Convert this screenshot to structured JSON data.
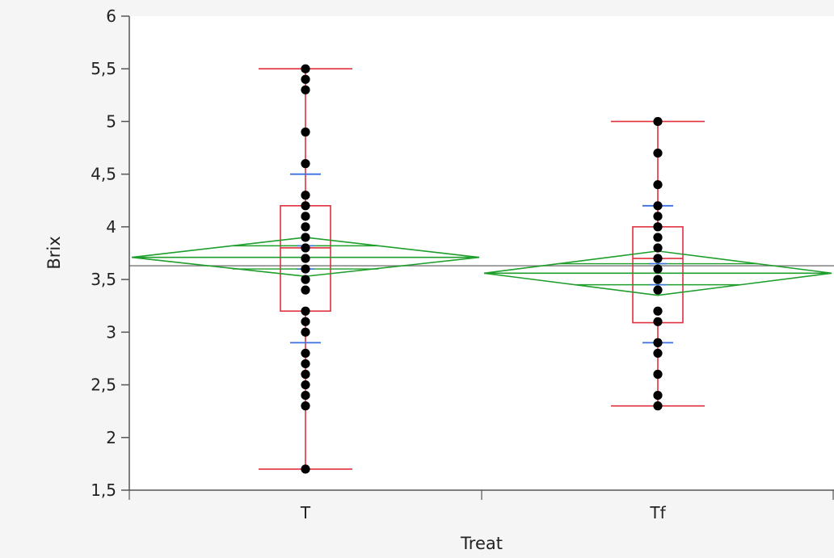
{
  "chart_data": {
    "type": "scatter",
    "subtype": "oneway-anova-box-plot-with-means-diamonds",
    "xlabel": "Treat",
    "ylabel": "Brix",
    "categories": [
      "T",
      "Tf"
    ],
    "ylim": [
      1.5,
      6
    ],
    "yticks": [
      1.5,
      2,
      2.5,
      3,
      3.5,
      4,
      4.5,
      5,
      5.5,
      6
    ],
    "ytick_labels": [
      "1,5",
      "2",
      "2,5",
      "3",
      "3,5",
      "4",
      "4,5",
      "5",
      "5,5",
      "6"
    ],
    "grid": false,
    "grand_mean": 3.63,
    "groups": [
      {
        "name": "T",
        "points": [
          1.7,
          2.3,
          2.4,
          2.5,
          2.6,
          2.7,
          2.8,
          3.0,
          3.1,
          3.2,
          3.4,
          3.5,
          3.6,
          3.7,
          3.8,
          3.9,
          4.0,
          4.1,
          4.2,
          4.3,
          4.6,
          4.9,
          5.3,
          5.4,
          5.5
        ],
        "box": {
          "min": 1.7,
          "q1": 3.2,
          "median": 3.8,
          "q3": 4.2,
          "max": 5.5
        },
        "mean": 3.71,
        "ci": [
          3.53,
          3.9
        ],
        "sd_bars": [
          2.9,
          4.5
        ],
        "ci_ticks": [
          3.6,
          3.82
        ]
      },
      {
        "name": "Tf",
        "points": [
          2.3,
          2.4,
          2.6,
          2.8,
          2.9,
          3.1,
          3.2,
          3.4,
          3.5,
          3.6,
          3.7,
          3.8,
          3.9,
          4.0,
          4.1,
          4.2,
          4.4,
          4.7,
          5.0
        ],
        "box": {
          "min": 2.3,
          "q1": 3.09,
          "median": 3.7,
          "q3": 4.0,
          "max": 5.0
        },
        "mean": 3.56,
        "ci": [
          3.35,
          3.77
        ],
        "sd_bars": [
          2.9,
          4.2
        ],
        "ci_ticks": [
          3.45,
          3.65
        ]
      }
    ],
    "colors": {
      "box": "#e0303e",
      "diamond": "#1e9e2a",
      "sd_bar": "#3a6fe0",
      "point": "#000000",
      "grand_mean": "#808080",
      "axis": "#555555",
      "plot_bg": "#ffffff"
    }
  }
}
